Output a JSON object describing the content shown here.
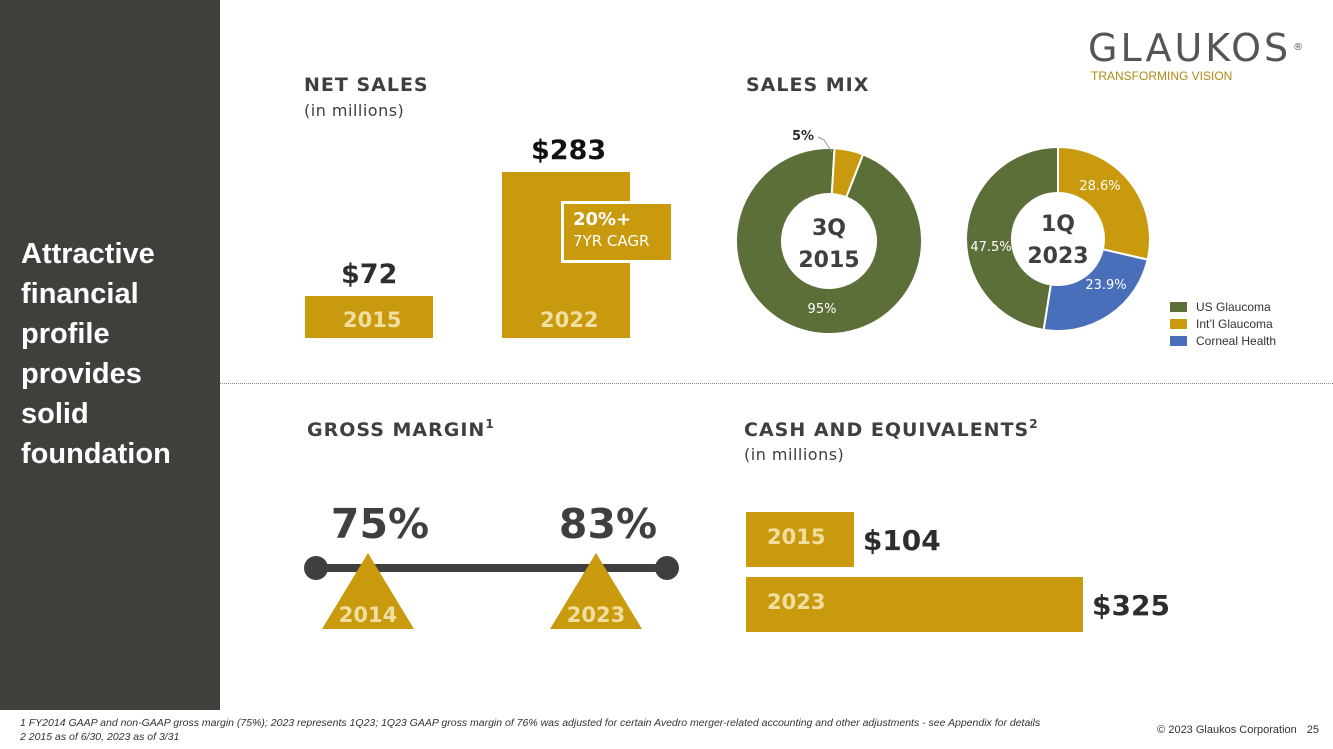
{
  "sidebar": {
    "title": "Attractive financial profile provides solid foundation",
    "title_lines": [
      "Attractive",
      "financial",
      "profile",
      "provides",
      "solid",
      "foundation"
    ]
  },
  "logo": {
    "word": "GLAUKOS",
    "registered_mark": "®",
    "tagline": "TRANSFORMING VISION"
  },
  "colors": {
    "gold": "#c9990e",
    "olive": "#5c6f39",
    "blue": "#4a6fba",
    "sidebar": "#3f3f3c",
    "bar_label": "#f1dfa1"
  },
  "net_sales": {
    "heading": "NET SALES",
    "subheading": "(in millions)",
    "cagr": "20%+",
    "cagr_label": "7YR CAGR"
  },
  "sales_mix": {
    "heading": "SALES MIX"
  },
  "gross_margin": {
    "heading": "GROSS MARGIN",
    "footnote_ref": "1"
  },
  "cash": {
    "heading": "CASH AND EQUIVALENTS",
    "footnote_ref": "2",
    "subheading": "(in millions)"
  },
  "chart_data": [
    {
      "type": "bar",
      "title": "NET SALES",
      "subtitle": "(in millions)",
      "categories": [
        "2015",
        "2022"
      ],
      "values": [
        72,
        283
      ],
      "value_labels": [
        "$72",
        "$283"
      ],
      "annotation": "20%+ 7YR CAGR"
    },
    {
      "type": "pie",
      "title": "SALES MIX",
      "center_label": [
        "3Q",
        "2015"
      ],
      "slices": [
        {
          "name": "US Glaucoma",
          "value": 95,
          "label": "95%"
        },
        {
          "name": "Int’l Glaucoma",
          "value": 5,
          "label": "5%"
        }
      ]
    },
    {
      "type": "pie",
      "title": "SALES MIX",
      "center_label": [
        "1Q",
        "2023"
      ],
      "slices": [
        {
          "name": "US Glaucoma",
          "value": 47.5,
          "label": "47.5%"
        },
        {
          "name": "Int’l Glaucoma",
          "value": 28.6,
          "label": "28.6%"
        },
        {
          "name": "Corneal Health",
          "value": 23.9,
          "label": "23.9%"
        }
      ],
      "legend": [
        "US Glaucoma",
        "Int’l Glaucoma",
        "Corneal Health"
      ],
      "legend_position": "right"
    },
    {
      "type": "scatter",
      "title": "GROSS MARGIN",
      "points": [
        {
          "year": "2014",
          "value": 75,
          "label": "75%"
        },
        {
          "year": "2023",
          "value": 83,
          "label": "83%"
        }
      ]
    },
    {
      "type": "bar",
      "orientation": "horizontal",
      "title": "CASH AND EQUIVALENTS",
      "subtitle": "(in millions)",
      "categories": [
        "2015",
        "2023"
      ],
      "values": [
        104,
        325
      ],
      "value_labels": [
        "$104",
        "$325"
      ]
    }
  ],
  "footer": {
    "footnote_1": "1 FY2014 GAAP and non-GAAP gross margin (75%); 2023 represents 1Q23; 1Q23 GAAP gross margin of 76% was adjusted for certain Avedro merger-related accounting and other adjustments - see Appendix for details",
    "footnote_2": "2 2015 as of 6/30, 2023 as of 3/31",
    "copyright": "© 2023 Glaukos Corporation",
    "page_number": "25"
  }
}
